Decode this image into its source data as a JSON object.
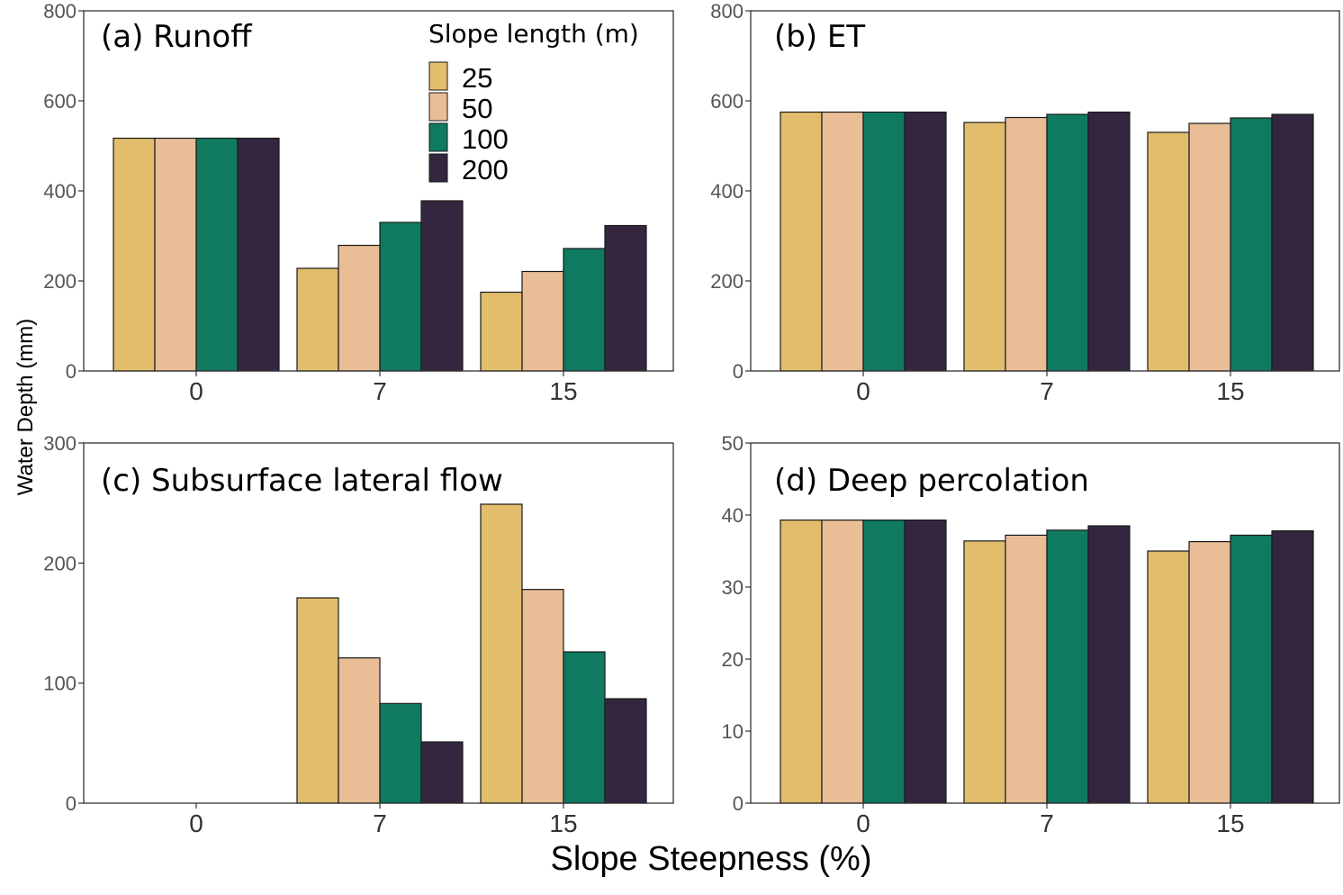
{
  "chart_data": [
    {
      "type": "bar",
      "title": "(a) Runoff",
      "categories": [
        "0",
        "7",
        "15"
      ],
      "series": [
        {
          "name": "25",
          "values": [
            517,
            228,
            175
          ]
        },
        {
          "name": "50",
          "values": [
            517,
            279,
            221
          ]
        },
        {
          "name": "100",
          "values": [
            517,
            330,
            272
          ]
        },
        {
          "name": "200",
          "values": [
            517,
            378,
            323
          ]
        }
      ],
      "ylim": [
        0,
        800
      ],
      "yticks": [
        0,
        200,
        400,
        600,
        800
      ]
    },
    {
      "type": "bar",
      "title": "(b) ET",
      "categories": [
        "0",
        "7",
        "15"
      ],
      "series": [
        {
          "name": "25",
          "values": [
            575,
            552,
            530
          ]
        },
        {
          "name": "50",
          "values": [
            575,
            563,
            550
          ]
        },
        {
          "name": "100",
          "values": [
            575,
            570,
            562
          ]
        },
        {
          "name": "200",
          "values": [
            575,
            575,
            570
          ]
        }
      ],
      "ylim": [
        0,
        800
      ],
      "yticks": [
        0,
        200,
        400,
        600,
        800
      ]
    },
    {
      "type": "bar",
      "title": "(c) Subsurface lateral flow",
      "categories": [
        "0",
        "7",
        "15"
      ],
      "series": [
        {
          "name": "25",
          "values": [
            0,
            171,
            249
          ]
        },
        {
          "name": "50",
          "values": [
            0,
            121,
            178
          ]
        },
        {
          "name": "100",
          "values": [
            0,
            83,
            126
          ]
        },
        {
          "name": "200",
          "values": [
            0,
            51,
            87
          ]
        }
      ],
      "ylim": [
        0,
        300
      ],
      "yticks": [
        0,
        100,
        200,
        300
      ]
    },
    {
      "type": "bar",
      "title": "(d) Deep percolation",
      "categories": [
        "0",
        "7",
        "15"
      ],
      "series": [
        {
          "name": "25",
          "values": [
            39.3,
            36.4,
            35.0
          ]
        },
        {
          "name": "50",
          "values": [
            39.3,
            37.2,
            36.3
          ]
        },
        {
          "name": "100",
          "values": [
            39.3,
            37.9,
            37.2
          ]
        },
        {
          "name": "200",
          "values": [
            39.3,
            38.5,
            37.8
          ]
        }
      ],
      "ylim": [
        0,
        50
      ],
      "yticks": [
        0,
        10,
        20,
        30,
        40,
        50
      ]
    }
  ],
  "legend": {
    "title": "Slope length (m)",
    "entries": [
      "25",
      "50",
      "100",
      "200"
    ]
  },
  "colors": {
    "series": [
      "#e1bd6c",
      "#e9bd96",
      "#0f7a5f",
      "#35263f"
    ],
    "bar_border": "#1a1a1a",
    "panel_border": "#333333"
  },
  "ylabel": "Water Depth (mm)",
  "xlabel": "Slope Steepness (%)"
}
